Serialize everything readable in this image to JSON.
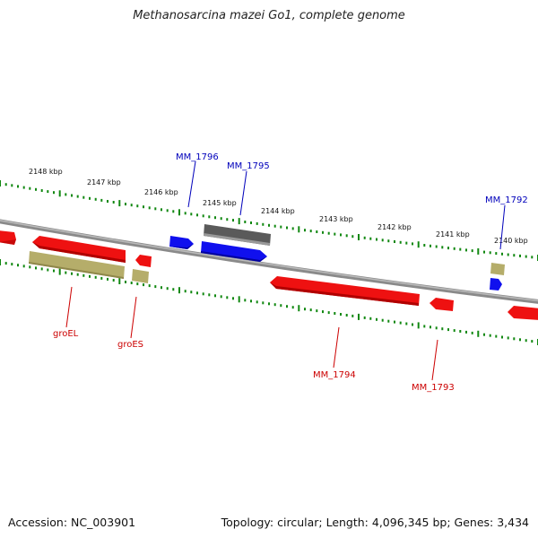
{
  "title": "Methanosarcina mazei Go1, complete genome",
  "footer": {
    "accession": "Accession: NC_003901",
    "topology": "Topology: circular; Length: 4,096,345 bp; Genes: 3,434"
  },
  "kbp_labels": [
    "2148 kbp",
    "2147 kbp",
    "2146 kbp",
    "2145 kbp",
    "2144 kbp",
    "2143 kbp",
    "2142 kbp",
    "2141 kbp",
    "2140 kbp"
  ],
  "gene_labels": {
    "mm1796": "MM_1796",
    "mm1795": "MM_1795",
    "mm1792": "MM_1792",
    "groEL": "groEL",
    "groES": "groES",
    "mm1794": "MM_1794",
    "mm1793": "MM_1793"
  },
  "colors": {
    "red": "#ee1111",
    "blue": "#1010ee",
    "olive": "#b5ad6a",
    "gray": "#606060",
    "green": "#118811",
    "label_red": "#cc0000",
    "label_blue": "#0000bb"
  }
}
